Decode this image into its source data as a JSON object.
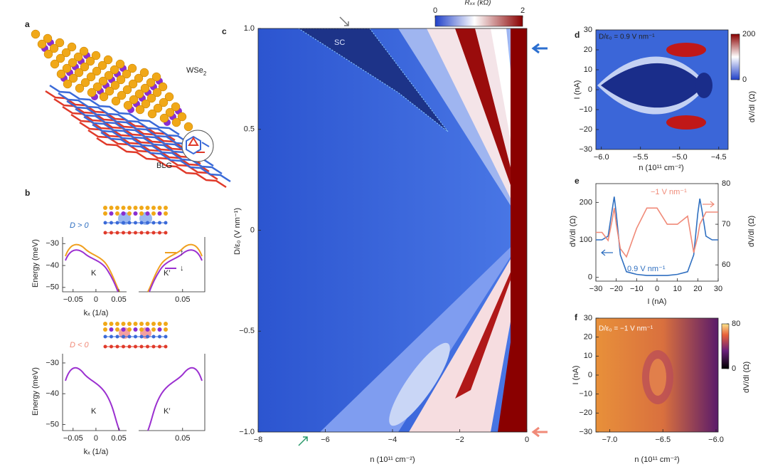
{
  "figure": {
    "a": {
      "label": "a",
      "top_layer": "WSe",
      "top_layer_sub": "2",
      "bottom_layer": "BLG"
    },
    "b": {
      "label": "b",
      "top": {
        "sign": "D > 0",
        "ylabel": "Energy (meV)",
        "xlabel": "kₓ (1/a)",
        "ylim": [
          -52,
          -27
        ],
        "yticks": [
          {
            "value": -30,
            "label": "−30"
          },
          {
            "value": -40,
            "label": "−40"
          },
          {
            "value": -50,
            "label": "−50"
          }
        ],
        "left": {
          "valley": "K",
          "xlim": [
            -0.073,
            0.067
          ],
          "xticks": [
            {
              "value": -0.05,
              "label": "−0.05"
            },
            0,
            0.05
          ]
        },
        "right": {
          "valley": "K′",
          "xlim": [
            -0.049,
            0.1
          ],
          "xticks": [
            0.05
          ]
        },
        "legend": [
          {
            "name": "↑",
            "color": "#f0a020"
          },
          {
            "name": "↓",
            "color": "#9b30d0"
          }
        ]
      },
      "bottom": {
        "sign": "D < 0",
        "ylabel": "Energy (meV)",
        "xlabel": "kₓ (1/a)",
        "ylim": [
          -52,
          -27
        ],
        "yticks": [
          {
            "value": -30,
            "label": "−30"
          },
          {
            "value": -40,
            "label": "−40"
          },
          {
            "value": -50,
            "label": "−50"
          }
        ],
        "left": {
          "valley": "K",
          "xlim": [
            -0.073,
            0.067
          ],
          "xticks": [
            {
              "value": -0.05,
              "label": "−0.05"
            },
            0,
            0.05
          ]
        },
        "right": {
          "valley": "K′",
          "xlim": [
            -0.049,
            0.1
          ],
          "xticks": [
            0.05
          ]
        }
      }
    },
    "c": {
      "label": "c",
      "xlabel": "n (10¹¹ cm⁻²)",
      "ylabel": "D/ε₀ (V nm⁻¹)",
      "annotation": "SC",
      "xlim": [
        -8,
        0
      ],
      "xticks": [
        {
          "value": -8,
          "label": "−8"
        },
        {
          "value": -6,
          "label": "−6"
        },
        {
          "value": -4,
          "label": "−4"
        },
        {
          "value": -2,
          "label": "−2"
        },
        0
      ],
      "ylim": [
        -1,
        1
      ],
      "yticks": [
        {
          "value": -1,
          "label": "−1.0"
        },
        {
          "value": -0.5,
          "label": "−0.5"
        },
        0,
        0.5,
        {
          "value": 1,
          "label": "1.0"
        }
      ],
      "colorbar": {
        "title": "Rₓₓ (kΩ)",
        "lim": [
          0,
          2
        ],
        "ticks": [
          0,
          2
        ]
      }
    },
    "d": {
      "label": "d",
      "annotation": "D/ε₀ = 0.9 V nm⁻¹",
      "xlabel": "n (10¹¹ cm⁻²)",
      "ylabel": "I (nA)",
      "xlim": [
        -6.07,
        -4.38
      ],
      "xticks": [
        {
          "value": -6,
          "label": "−6.0"
        },
        {
          "value": -5.5,
          "label": "−5.5"
        },
        {
          "value": -5,
          "label": "−5.0"
        },
        {
          "value": -4.5,
          "label": "−4.5"
        }
      ],
      "ylim": [
        -30,
        30
      ],
      "yticks": [
        {
          "value": -30,
          "label": "−30"
        },
        {
          "value": -20,
          "label": "−20"
        },
        {
          "value": -10,
          "label": "−10"
        },
        0,
        10,
        20,
        30
      ],
      "colorbar": {
        "title": "dV/dI (Ω)",
        "lim": [
          0,
          200
        ],
        "ticks": [
          0,
          200
        ]
      }
    },
    "e": {
      "label": "e",
      "type": "line",
      "xlabel": "I (nA)",
      "ylabel": "dV/dI (Ω)",
      "y2label": "dV/dI (Ω)",
      "xlim": [
        -30,
        30
      ],
      "xticks": [
        {
          "value": -30,
          "label": "−30"
        },
        {
          "value": -20,
          "label": "−20"
        },
        {
          "value": -10,
          "label": "−10"
        },
        0,
        10,
        20,
        30
      ],
      "ylim": [
        -10,
        250
      ],
      "yticks": [
        0,
        100,
        200
      ],
      "y2lim": [
        56,
        80
      ],
      "y2ticks": [
        60,
        70,
        80
      ],
      "x": [
        -30,
        -27,
        -24,
        -22,
        -21,
        -20,
        -18,
        -15,
        -10,
        -5,
        0,
        5,
        10,
        15,
        18,
        20,
        21,
        22,
        24,
        27,
        30
      ],
      "series": [
        {
          "name": "0.9 V nm⁻¹",
          "color": "#2f6fc0",
          "values": [
            100,
            100,
            110,
            180,
            215,
            170,
            60,
            15,
            8,
            5,
            5,
            5,
            8,
            15,
            60,
            170,
            210,
            180,
            110,
            100,
            100
          ]
        },
        {
          "name": "−1 V nm⁻¹",
          "color": "#f08a78",
          "axis": "y2",
          "values": [
            68,
            68,
            66,
            71,
            74,
            70,
            64,
            62,
            69,
            74,
            74,
            70,
            70,
            72,
            63,
            67,
            70,
            71,
            73,
            73,
            73
          ]
        }
      ]
    },
    "f": {
      "label": "f",
      "annotation": "D/ε₀ = −1 V nm⁻¹",
      "xlabel": "n (10¹¹ cm⁻²)",
      "ylabel": "I (nA)",
      "xlim": [
        -7.13,
        -5.98
      ],
      "xticks": [
        {
          "value": -7,
          "label": "−7.0"
        },
        {
          "value": -6.5,
          "label": "−6.5"
        },
        {
          "value": -6,
          "label": "−6.0"
        }
      ],
      "ylim": [
        -30,
        30
      ],
      "yticks": [
        {
          "value": -30,
          "label": "−30"
        },
        {
          "value": -20,
          "label": "−20"
        },
        {
          "value": -10,
          "label": "−10"
        },
        0,
        10,
        20,
        30
      ],
      "colorbar": {
        "title": "dV/dI (Ω)",
        "lim": [
          0,
          80
        ],
        "ticks": [
          0,
          80
        ]
      }
    }
  }
}
